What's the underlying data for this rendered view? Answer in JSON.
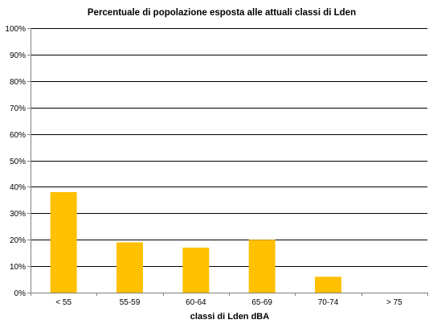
{
  "chart_data": {
    "type": "bar",
    "title": "Percentuale di popolazione esposta alle attuali classi di Lden",
    "xlabel": "classi di Lden dBA",
    "ylabel": "",
    "categories": [
      "< 55",
      "55-59",
      "60-64",
      "65-69",
      "70-74",
      "> 75"
    ],
    "values": [
      0.38,
      0.19,
      0.17,
      0.2,
      0.06,
      0.0
    ],
    "ylim": [
      0,
      1
    ],
    "yticks": [
      "0%",
      "10%",
      "20%",
      "30%",
      "40%",
      "50%",
      "60%",
      "70%",
      "80%",
      "90%",
      "100%"
    ],
    "grid": true,
    "legend": "none",
    "colors": {
      "bar": "#FFC000",
      "grid": "#000000",
      "axis": "#808080"
    }
  }
}
